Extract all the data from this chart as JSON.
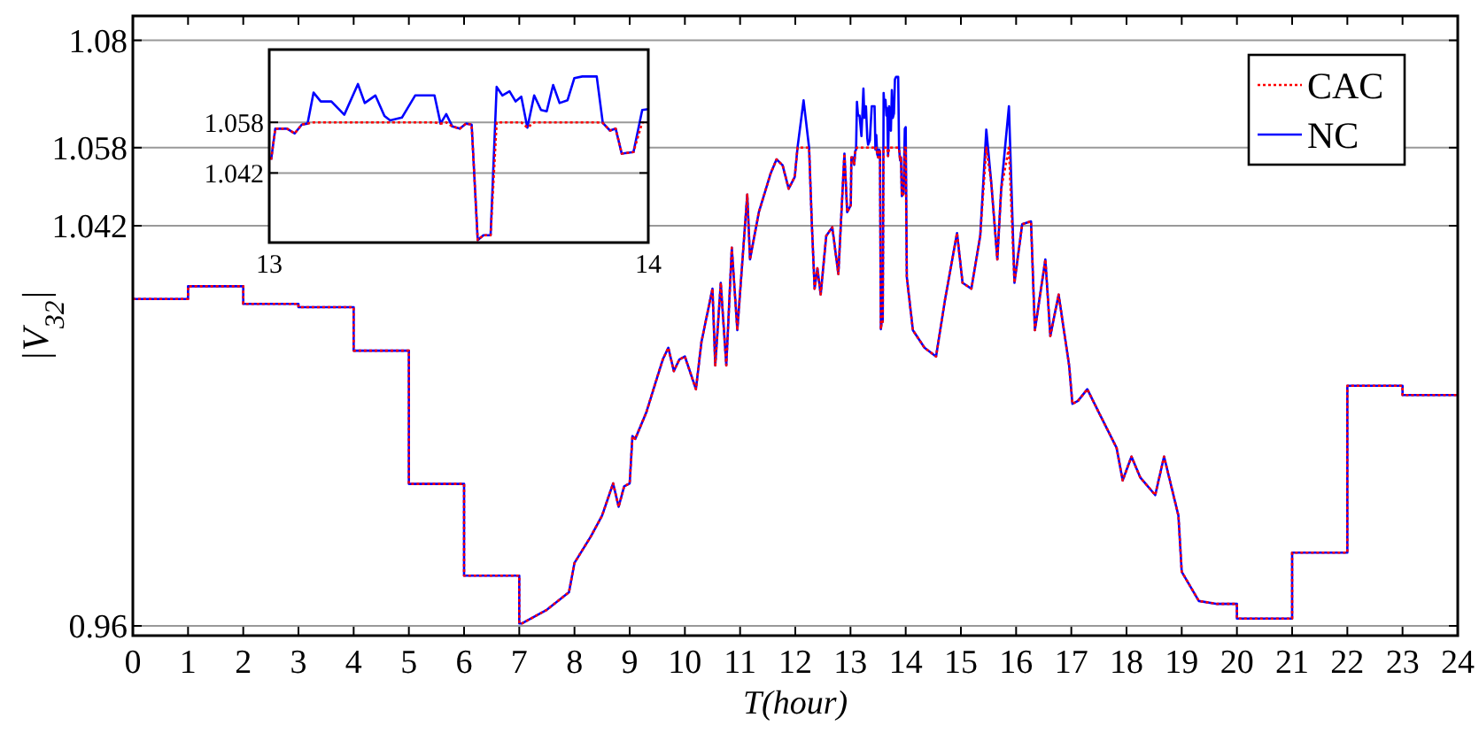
{
  "chart_data": [
    {
      "type": "line",
      "xlabel": "T(hour)",
      "ylabel": "|V$_{32}$|",
      "xlim": [
        0,
        24
      ],
      "xticks": [
        0,
        1,
        2,
        3,
        4,
        5,
        6,
        7,
        8,
        9,
        10,
        11,
        12,
        13,
        14,
        15,
        16,
        17,
        18,
        19,
        20,
        21,
        22,
        23,
        24
      ],
      "ylim": [
        0.958,
        1.085
      ],
      "yticks": [
        0.96,
        1.042,
        1.058,
        1.08
      ],
      "grid": "y",
      "legend": "top right",
      "x": [
        0,
        1,
        1,
        2,
        2,
        3,
        3,
        4,
        4,
        5,
        5,
        6,
        6,
        7,
        7,
        7.05,
        7.5,
        7.9,
        8,
        8.3,
        8.5,
        8.7,
        8.8,
        8.9,
        9,
        9.05,
        9.1,
        9.3,
        9.5,
        9.6,
        9.7,
        9.8,
        9.9,
        10,
        10.2,
        10.3,
        10.5,
        10.55,
        10.65,
        10.75,
        10.85,
        10.95,
        11.13,
        11.18,
        11.34,
        11.55,
        11.66,
        11.77,
        11.88,
        11.99,
        12.04,
        12.15,
        12.25,
        12.3,
        12.35,
        12.4,
        12.46,
        12.56,
        12.67,
        12.78,
        12.89,
        12.94,
        13.005,
        13.016,
        13.047,
        13.067,
        13.086,
        13.101,
        13.117,
        13.136,
        13.164,
        13.198,
        13.234,
        13.252,
        13.28,
        13.304,
        13.319,
        13.35,
        13.385,
        13.436,
        13.452,
        13.467,
        13.483,
        13.503,
        13.519,
        13.534,
        13.55,
        13.565,
        13.584,
        13.6,
        13.615,
        13.634,
        13.65,
        13.665,
        13.681,
        13.699,
        13.717,
        13.732,
        13.749,
        13.766,
        13.787,
        13.805,
        13.826,
        13.864,
        13.88,
        13.899,
        13.914,
        13.93,
        13.961,
        13.984,
        14.0,
        14.02,
        14.13,
        14.34,
        14.55,
        14.71,
        14.93,
        15.03,
        15.19,
        15.35,
        15.46,
        15.55,
        15.66,
        15.73,
        15.87,
        15.97,
        16.11,
        16.27,
        16.34,
        16.53,
        16.62,
        16.77,
        16.96,
        17.02,
        17.12,
        17.29,
        17.5,
        17.82,
        17.93,
        18.09,
        18.25,
        18.52,
        18.68,
        18.94,
        19,
        19.31,
        19.64,
        20,
        20,
        21,
        21,
        22,
        22,
        23,
        23,
        24
      ],
      "series": [
        {
          "name": "CAC",
          "color": "#ff0000",
          "line_style": "dotted",
          "values": [
            1.027,
            1.027,
            1.0296,
            1.0296,
            1.026,
            1.026,
            1.0253,
            1.0253,
            1.0164,
            1.0164,
            0.9891,
            0.9891,
            0.9703,
            0.9703,
            0.9605,
            0.9605,
            0.9633,
            0.9669,
            0.9729,
            0.9784,
            0.9826,
            0.9892,
            0.9844,
            0.9886,
            0.9892,
            0.9989,
            0.9983,
            1.0037,
            1.011,
            1.0146,
            1.017,
            1.0122,
            1.0146,
            1.0152,
            1.0085,
            1.0182,
            1.0291,
            1.0134,
            1.0303,
            1.0134,
            1.0375,
            1.0206,
            1.0484,
            1.0351,
            1.0448,
            1.0526,
            1.0556,
            1.0544,
            1.0496,
            1.052,
            1.058,
            1.058,
            1.058,
            1.0423,
            1.0291,
            1.0333,
            1.0279,
            1.0399,
            1.0417,
            1.0321,
            1.0568,
            1.0448,
            1.0462,
            1.056,
            1.056,
            1.0545,
            1.0573,
            1.0576,
            1.058,
            1.058,
            1.058,
            1.058,
            1.058,
            1.058,
            1.058,
            1.058,
            1.058,
            1.058,
            1.058,
            1.058,
            1.0576,
            1.058,
            1.0567,
            1.056,
            1.0576,
            1.0573,
            1.0208,
            1.0223,
            1.0223,
            1.058,
            1.058,
            1.058,
            1.058,
            1.058,
            1.0563,
            1.058,
            1.058,
            1.058,
            1.058,
            1.058,
            1.058,
            1.058,
            1.058,
            1.058,
            1.0578,
            1.0554,
            1.056,
            1.0481,
            1.0486,
            1.058,
            1.058,
            1.0315,
            1.0206,
            1.017,
            1.0152,
            1.0267,
            1.0405,
            1.0303,
            1.0291,
            1.0399,
            1.058,
            1.0508,
            1.0351,
            1.0496,
            1.058,
            1.0303,
            1.0423,
            1.0429,
            1.0206,
            1.0351,
            1.0194,
            1.0279,
            1.0134,
            1.0055,
            1.0061,
            1.0085,
            1.0037,
            0.9965,
            0.9898,
            0.9947,
            0.9904,
            0.9868,
            0.9947,
            0.9826,
            0.9711,
            0.9651,
            0.9645,
            0.9645,
            0.9615,
            0.9615,
            0.975,
            0.975,
            1.0092,
            1.0092,
            1.0073,
            1.0073
          ]
        },
        {
          "name": "NC",
          "color": "#0000ff",
          "line_style": "solid",
          "values": [
            1.027,
            1.027,
            1.0296,
            1.0296,
            1.026,
            1.026,
            1.0253,
            1.0253,
            1.0164,
            1.0164,
            0.9891,
            0.9891,
            0.9703,
            0.9703,
            0.9605,
            0.9605,
            0.9633,
            0.9669,
            0.9729,
            0.9784,
            0.9826,
            0.9892,
            0.9844,
            0.9886,
            0.9892,
            0.9989,
            0.9983,
            1.0037,
            1.011,
            1.0146,
            1.017,
            1.0122,
            1.0146,
            1.0152,
            1.0085,
            1.0182,
            1.0291,
            1.0134,
            1.0303,
            1.0134,
            1.0375,
            1.0206,
            1.0484,
            1.0351,
            1.0448,
            1.0526,
            1.0556,
            1.0544,
            1.0496,
            1.052,
            1.058,
            1.0677,
            1.058,
            1.0423,
            1.0291,
            1.0333,
            1.0279,
            1.0399,
            1.0417,
            1.0321,
            1.0568,
            1.0448,
            1.0462,
            1.056,
            1.056,
            1.0545,
            1.0573,
            1.0576,
            1.0674,
            1.0646,
            1.0646,
            1.0604,
            1.0701,
            1.0641,
            1.0665,
            1.06,
            1.0586,
            1.0595,
            1.0665,
            1.0665,
            1.0576,
            1.0606,
            1.0567,
            1.056,
            1.0576,
            1.0573,
            1.0208,
            1.0223,
            1.0223,
            1.0692,
            1.0665,
            1.0678,
            1.0646,
            1.0661,
            1.0563,
            1.0665,
            1.0619,
            1.0615,
            1.0698,
            1.0641,
            1.065,
            1.072,
            1.0725,
            1.0725,
            1.0578,
            1.0554,
            1.056,
            1.0481,
            1.0486,
            1.0619,
            1.0622,
            1.0315,
            1.0206,
            1.017,
            1.0152,
            1.0267,
            1.0405,
            1.0303,
            1.0291,
            1.0399,
            1.0617,
            1.0508,
            1.0351,
            1.0496,
            1.0665,
            1.0303,
            1.0423,
            1.0429,
            1.0206,
            1.0351,
            1.0194,
            1.0279,
            1.0134,
            1.0055,
            1.0061,
            1.0085,
            1.0037,
            0.9965,
            0.9898,
            0.9947,
            0.9904,
            0.9868,
            0.9947,
            0.9826,
            0.9711,
            0.9651,
            0.9645,
            0.9645,
            0.9615,
            0.9615,
            0.975,
            0.975,
            1.0092,
            1.0092,
            1.0073,
            1.0073
          ]
        }
      ]
    },
    {
      "type": "line",
      "xlim": [
        13,
        14
      ],
      "xticks": [
        13,
        14
      ],
      "ylim": [
        1.02,
        1.081
      ],
      "yticks": [
        1.042,
        1.058
      ],
      "grid": "y",
      "x": [
        13.005,
        13.016,
        13.047,
        13.067,
        13.086,
        13.101,
        13.117,
        13.136,
        13.164,
        13.198,
        13.234,
        13.252,
        13.28,
        13.304,
        13.319,
        13.35,
        13.385,
        13.436,
        13.452,
        13.467,
        13.483,
        13.503,
        13.519,
        13.534,
        13.55,
        13.565,
        13.584,
        13.6,
        13.615,
        13.634,
        13.65,
        13.665,
        13.681,
        13.699,
        13.717,
        13.732,
        13.749,
        13.766,
        13.787,
        13.805,
        13.826,
        13.864,
        13.88,
        13.899,
        13.914,
        13.93,
        13.961,
        13.984,
        14.0
      ],
      "series": [
        {
          "color": "#ff0000",
          "line_style": "dotted",
          "values": [
            1.0462,
            1.056,
            1.056,
            1.0545,
            1.0573,
            1.0576,
            1.058,
            1.058,
            1.058,
            1.058,
            1.058,
            1.058,
            1.058,
            1.058,
            1.058,
            1.058,
            1.058,
            1.058,
            1.0576,
            1.058,
            1.0567,
            1.056,
            1.0576,
            1.0573,
            1.0208,
            1.0223,
            1.0223,
            1.058,
            1.058,
            1.058,
            1.058,
            1.058,
            1.0563,
            1.058,
            1.058,
            1.058,
            1.058,
            1.058,
            1.058,
            1.058,
            1.058,
            1.058,
            1.0578,
            1.0554,
            1.056,
            1.0481,
            1.0486,
            1.058,
            1.058
          ]
        },
        {
          "color": "#0000ff",
          "line_style": "solid",
          "values": [
            1.0462,
            1.056,
            1.056,
            1.0545,
            1.0573,
            1.0576,
            1.0674,
            1.0646,
            1.0646,
            1.0604,
            1.0701,
            1.0641,
            1.0665,
            1.06,
            1.0586,
            1.0595,
            1.0665,
            1.0665,
            1.0576,
            1.0606,
            1.0567,
            1.056,
            1.0576,
            1.0573,
            1.0208,
            1.0223,
            1.0223,
            1.0692,
            1.0665,
            1.0678,
            1.0646,
            1.0661,
            1.0563,
            1.0665,
            1.0619,
            1.0615,
            1.0698,
            1.0641,
            1.065,
            1.072,
            1.0725,
            1.0725,
            1.0578,
            1.0554,
            1.056,
            1.0481,
            1.0486,
            1.0619,
            1.0622
          ]
        }
      ]
    }
  ]
}
